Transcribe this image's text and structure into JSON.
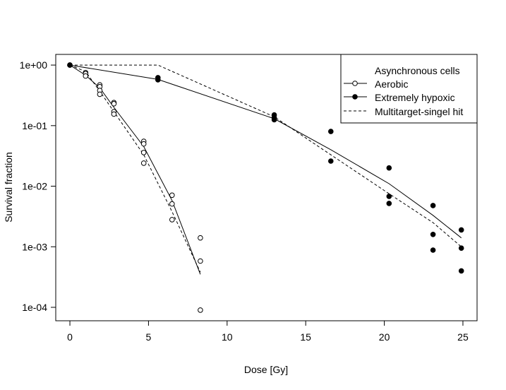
{
  "chart_data": {
    "type": "scatter",
    "title": "",
    "xlabel": "Dose [Gy]",
    "ylabel": "Survival fraction",
    "xlim": [
      -0.9,
      25.9
    ],
    "ylim": [
      6e-05,
      1.5
    ],
    "y_scale": "log",
    "x_ticks": [
      0,
      5,
      10,
      15,
      20,
      25
    ],
    "x_tick_labels": [
      "0",
      "5",
      "10",
      "15",
      "20",
      "25"
    ],
    "y_ticks": [
      1,
      0.1,
      0.01,
      0.001,
      0.0001
    ],
    "y_tick_labels": [
      "1e+00",
      "1e-01",
      "1e-02",
      "1e-03",
      "1e-04"
    ],
    "grid": false,
    "legend": {
      "position": "top-right",
      "title": "Asynchronous cells",
      "entries": [
        {
          "label": "Aerobic",
          "line": "solid",
          "marker": "open-circle"
        },
        {
          "label": "Extremely hypoxic",
          "line": "solid",
          "marker": "filled-circle"
        },
        {
          "label": "Multitarget-singel hit",
          "line": "dashed",
          "marker": "none"
        }
      ]
    },
    "series": [
      {
        "name": "Aerobic",
        "kind": "points",
        "marker": "open-circle",
        "x": [
          0,
          1,
          1,
          1,
          1.9,
          1.9,
          1.9,
          1.9,
          2.8,
          2.8,
          2.8,
          2.8,
          4.7,
          4.7,
          4.7,
          4.7,
          6.5,
          6.5,
          6.5,
          8.3,
          8.3,
          8.3
        ],
        "y": [
          1,
          0.75,
          0.72,
          0.66,
          0.47,
          0.44,
          0.38,
          0.33,
          0.24,
          0.23,
          0.17,
          0.155,
          0.055,
          0.05,
          0.036,
          0.024,
          0.0071,
          0.0051,
          0.0028,
          0.0014,
          0.00058,
          9e-05
        ]
      },
      {
        "name": "Extremely hypoxic",
        "kind": "points",
        "marker": "filled-circle",
        "x": [
          0,
          5.6,
          5.6,
          13,
          13,
          13,
          16.6,
          16.6,
          20.3,
          20.3,
          20.3,
          23.1,
          23.1,
          23.1,
          24.9,
          24.9,
          24.9
        ],
        "y": [
          1,
          0.62,
          0.57,
          0.15,
          0.135,
          0.125,
          0.08,
          0.026,
          0.02,
          0.0068,
          0.0052,
          0.0048,
          0.0016,
          0.00088,
          0.0019,
          0.00095,
          0.0004
        ]
      },
      {
        "name": "Aerobic",
        "kind": "line",
        "line": "solid",
        "x": [
          0,
          1,
          1.9,
          2.8,
          4.7,
          6.5,
          8.3
        ],
        "y": [
          1,
          0.68,
          0.42,
          0.2,
          0.045,
          0.0058,
          0.00035
        ]
      },
      {
        "name": "Extremely hypoxic",
        "kind": "line",
        "line": "solid",
        "x": [
          0,
          5.6,
          13,
          16.6,
          20.3,
          23.1,
          24.9
        ],
        "y": [
          1,
          0.58,
          0.13,
          0.04,
          0.011,
          0.0033,
          0.0014
        ]
      },
      {
        "name": "Multitarget-singel hit",
        "kind": "line",
        "line": "dashed",
        "group": "aerobic",
        "x": [
          0,
          1,
          1.9,
          2.8,
          4.7,
          6.5,
          8.3
        ],
        "y": [
          1,
          0.78,
          0.37,
          0.17,
          0.033,
          0.0038,
          0.00038
        ]
      },
      {
        "name": "Multitarget-singel hit",
        "kind": "line",
        "line": "dashed",
        "group": "hypoxic",
        "x": [
          0,
          5.6,
          13,
          16.6,
          20.3,
          23.1,
          24.9
        ],
        "y": [
          1,
          1,
          0.14,
          0.033,
          0.0075,
          0.0025,
          0.001
        ]
      }
    ]
  }
}
